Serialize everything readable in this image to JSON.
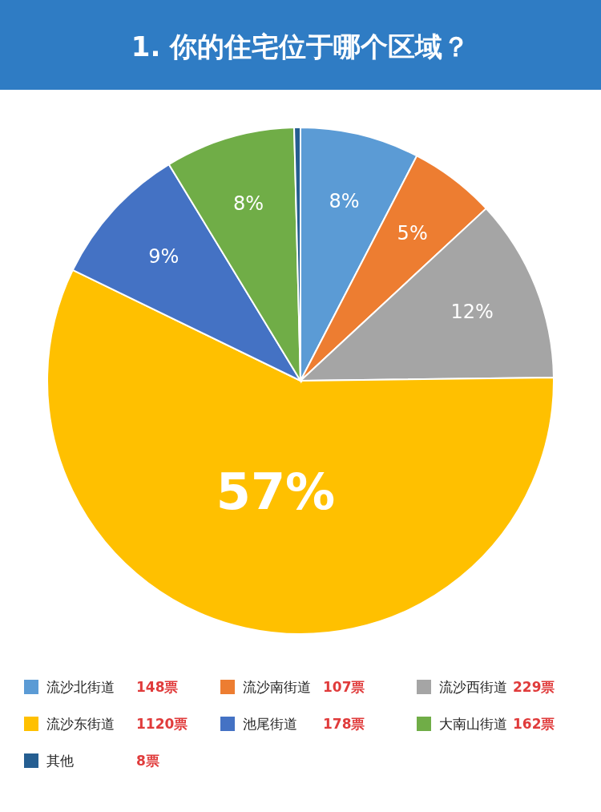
{
  "chart_data": {
    "type": "pie",
    "title": "1. 你的住宅位于哪个区域？",
    "categories": [
      "流沙北街道",
      "流沙南街道",
      "流沙西街道",
      "流沙东街道",
      "池尾街道",
      "大南山街道",
      "其他"
    ],
    "values": [
      7.6,
      5.5,
      11.7,
      57.4,
      9.1,
      8.3,
      0.4
    ],
    "colors": [
      "#5b9bd5",
      "#ed7d31",
      "#a5a5a5",
      "#ffc000",
      "#4472c4",
      "#70ad47",
      "#255e91"
    ],
    "value_labels": [
      "8%",
      "5%",
      "12%",
      "57%",
      "9%",
      "8%",
      null
    ],
    "annotations": [
      "148票",
      "107票",
      "229票",
      "1120票",
      "178票",
      "162票",
      "8票"
    ],
    "legend": "bottom"
  }
}
